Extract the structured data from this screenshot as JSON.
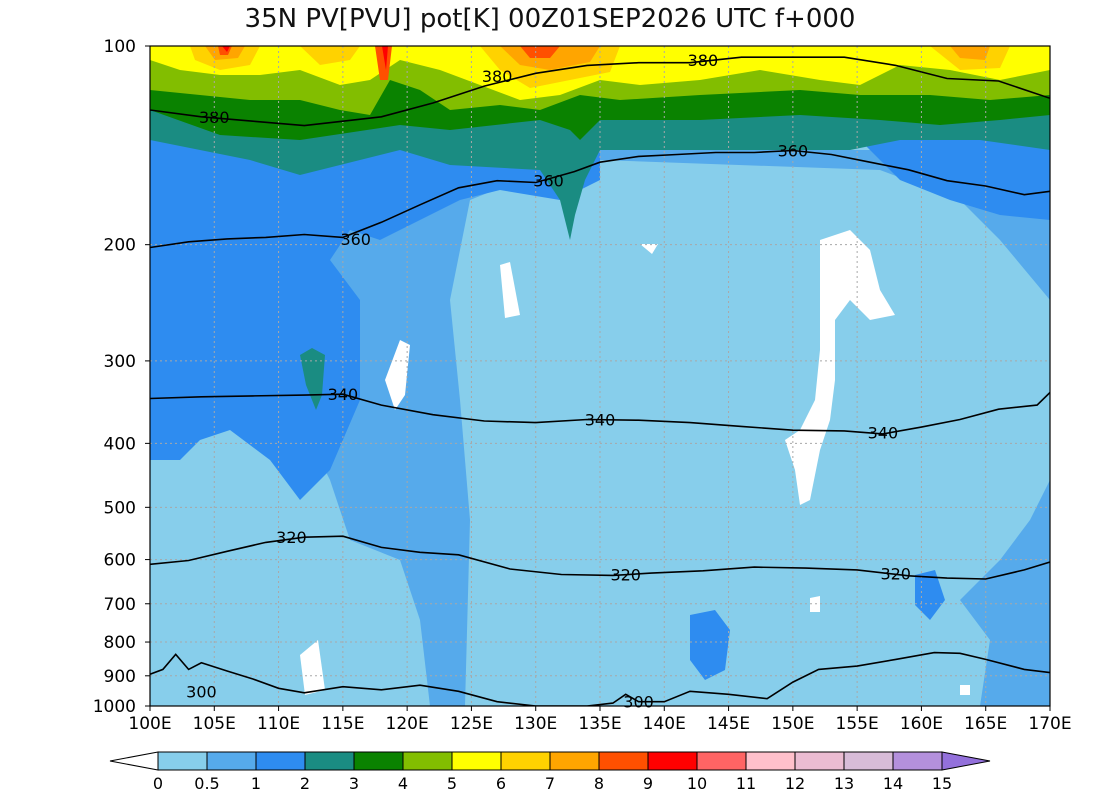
{
  "chart_data": {
    "type": "heatmap",
    "title": "35N PV[PVU] pot[K] 00Z01SEP2026 UTC f+000",
    "x_ticks": [
      "100E",
      "105E",
      "110E",
      "115E",
      "120E",
      "125E",
      "130E",
      "135E",
      "140E",
      "145E",
      "150E",
      "155E",
      "160E",
      "165E",
      "170E"
    ],
    "x_values": [
      100,
      105,
      110,
      115,
      120,
      125,
      130,
      135,
      140,
      145,
      150,
      155,
      160,
      165,
      170
    ],
    "xlim": [
      100,
      170
    ],
    "y_ticks": [
      "100",
      "200",
      "300",
      "400",
      "500",
      "600",
      "700",
      "800",
      "900",
      "1000"
    ],
    "y_values": [
      100,
      200,
      300,
      400,
      500,
      600,
      700,
      800,
      900,
      1000
    ],
    "ylim": [
      1000,
      100
    ],
    "y_scale": "log",
    "grid": true,
    "colorbar": {
      "levels": [
        "0",
        "0.5",
        "1",
        "2",
        "3",
        "4",
        "5",
        "6",
        "7",
        "8",
        "9",
        "10",
        "11",
        "12",
        "13",
        "14",
        "15"
      ],
      "colors": [
        "#87ceeb",
        "#56aaeb",
        "#2e8cf0",
        "#1a8c82",
        "#0a8200",
        "#82be00",
        "#ffff00",
        "#ffd200",
        "#ffa500",
        "#ff5000",
        "#ff0000",
        "#ff6464",
        "#ffc0cb",
        "#ebbcd2",
        "#d8bcd8",
        "#b490dc"
      ],
      "extend_min_color": "#ffffff",
      "extend_max_color": "#9370db"
    },
    "contour_labels": [
      "380",
      "380",
      "380",
      "360",
      "360",
      "360",
      "340",
      "340",
      "340",
      "320",
      "320",
      "320",
      "300",
      "300"
    ],
    "contours": [
      {
        "level": 380,
        "points": [
          [
            100,
            125
          ],
          [
            104,
            128
          ],
          [
            108,
            130
          ],
          [
            112,
            132
          ],
          [
            115,
            130
          ],
          [
            118,
            128
          ],
          [
            122,
            122
          ],
          [
            126,
            115
          ],
          [
            130,
            110
          ],
          [
            134,
            107
          ],
          [
            138,
            106
          ],
          [
            142,
            106
          ],
          [
            146,
            104
          ],
          [
            150,
            104
          ],
          [
            154,
            104
          ],
          [
            158,
            107
          ],
          [
            162,
            112
          ],
          [
            166,
            113
          ],
          [
            170,
            120
          ]
        ]
      },
      {
        "level": 360,
        "points": [
          [
            100,
            202
          ],
          [
            103,
            198
          ],
          [
            106,
            196
          ],
          [
            109,
            195
          ],
          [
            112,
            193
          ],
          [
            115,
            195
          ],
          [
            118,
            185
          ],
          [
            121,
            174
          ],
          [
            124,
            164
          ],
          [
            127,
            160
          ],
          [
            130,
            161
          ],
          [
            133,
            155
          ],
          [
            135,
            150
          ],
          [
            138,
            147
          ],
          [
            141,
            146
          ],
          [
            144,
            145
          ],
          [
            147,
            145
          ],
          [
            150,
            144
          ],
          [
            153,
            146
          ],
          [
            156,
            150
          ],
          [
            159,
            154
          ],
          [
            162,
            160
          ],
          [
            165,
            163
          ],
          [
            168,
            168
          ],
          [
            170,
            166
          ]
        ]
      },
      {
        "level": 340,
        "points": [
          [
            100,
            342
          ],
          [
            104,
            340
          ],
          [
            108,
            339
          ],
          [
            112,
            338
          ],
          [
            115,
            337
          ],
          [
            118,
            350
          ],
          [
            122,
            362
          ],
          [
            126,
            370
          ],
          [
            130,
            372
          ],
          [
            134,
            368
          ],
          [
            138,
            369
          ],
          [
            142,
            372
          ],
          [
            146,
            377
          ],
          [
            150,
            382
          ],
          [
            154,
            383
          ],
          [
            157,
            387
          ],
          [
            160,
            378
          ],
          [
            163,
            368
          ],
          [
            166,
            355
          ],
          [
            169,
            350
          ],
          [
            170,
            335
          ]
        ]
      },
      {
        "level": 320,
        "points": [
          [
            100,
            610
          ],
          [
            103,
            602
          ],
          [
            106,
            583
          ],
          [
            109,
            565
          ],
          [
            112,
            555
          ],
          [
            115,
            553
          ],
          [
            118,
            575
          ],
          [
            121,
            585
          ],
          [
            124,
            590
          ],
          [
            128,
            620
          ],
          [
            132,
            632
          ],
          [
            136,
            634
          ],
          [
            139,
            629
          ],
          [
            143,
            624
          ],
          [
            147,
            616
          ],
          [
            151,
            618
          ],
          [
            155,
            622
          ],
          [
            159,
            635
          ],
          [
            162,
            640
          ],
          [
            165,
            642
          ],
          [
            168,
            622
          ],
          [
            170,
            605
          ]
        ]
      },
      {
        "level": 300,
        "points": [
          [
            100,
            895
          ],
          [
            101,
            880
          ],
          [
            102,
            835
          ],
          [
            103,
            880
          ],
          [
            104,
            860
          ],
          [
            106,
            885
          ],
          [
            108,
            910
          ],
          [
            110,
            940
          ],
          [
            112,
            955
          ],
          [
            115,
            935
          ],
          [
            118,
            945
          ],
          [
            121,
            930
          ],
          [
            124,
            950
          ],
          [
            127,
            985
          ],
          [
            130,
            1000
          ],
          [
            134,
            1000
          ],
          [
            136,
            990
          ],
          [
            137,
            960
          ],
          [
            138,
            985
          ],
          [
            140,
            985
          ],
          [
            142,
            950
          ],
          [
            145,
            960
          ],
          [
            148,
            975
          ],
          [
            150,
            920
          ],
          [
            152,
            880
          ],
          [
            155,
            870
          ],
          [
            158,
            850
          ],
          [
            161,
            830
          ],
          [
            163,
            832
          ],
          [
            165,
            850
          ],
          [
            168,
            880
          ],
          [
            170,
            890
          ]
        ]
      }
    ]
  }
}
